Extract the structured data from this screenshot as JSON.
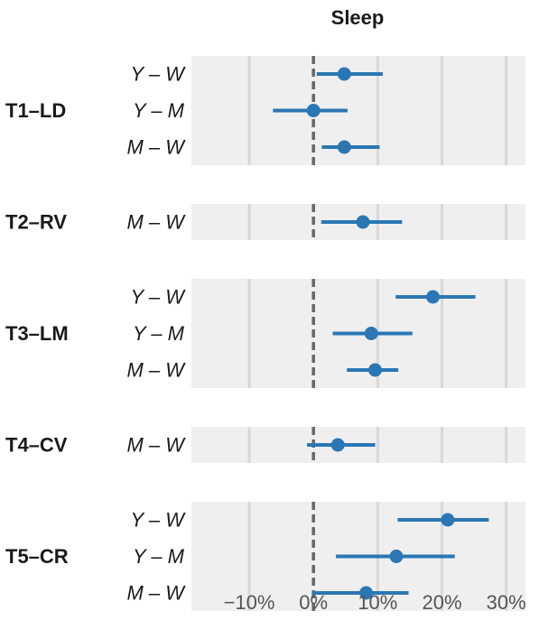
{
  "chart_data": {
    "type": "forest",
    "title": "Sleep",
    "xlabel": "",
    "ylabel": "",
    "xlim": [
      -19,
      33
    ],
    "x_ticks": [
      -10,
      0,
      10,
      20,
      30
    ],
    "x_tick_labels": [
      "−10%",
      "0%",
      "10%",
      "20%",
      "30%"
    ],
    "reference_line": 0,
    "grid": true,
    "point_color": "#2a77b4",
    "panel_background": "#efefef",
    "grid_color": "#d8d8d8",
    "reference_line_color": "#666666",
    "groups": [
      {
        "label": "T1–LD",
        "rows": [
          {
            "label": "Y – W",
            "estimate": 4.8,
            "lower": 0.5,
            "upper": 10.8
          },
          {
            "label": "Y – M",
            "estimate": 0.0,
            "lower": -6.3,
            "upper": 5.3
          },
          {
            "label": "M – W",
            "estimate": 4.8,
            "lower": 1.3,
            "upper": 10.3
          }
        ]
      },
      {
        "label": "T2–RV",
        "rows": [
          {
            "label": "M – W",
            "estimate": 7.7,
            "lower": 1.2,
            "upper": 13.8
          }
        ]
      },
      {
        "label": "T3–LM",
        "rows": [
          {
            "label": "Y – W",
            "estimate": 18.6,
            "lower": 12.8,
            "upper": 25.2
          },
          {
            "label": "Y – M",
            "estimate": 9.0,
            "lower": 3.0,
            "upper": 15.4
          },
          {
            "label": "M – W",
            "estimate": 9.6,
            "lower": 5.2,
            "upper": 13.2
          }
        ]
      },
      {
        "label": "T4–CV",
        "rows": [
          {
            "label": "M – W",
            "estimate": 3.8,
            "lower": -1.0,
            "upper": 9.6
          }
        ]
      },
      {
        "label": "T5–CR",
        "rows": [
          {
            "label": "Y – W",
            "estimate": 20.9,
            "lower": 13.1,
            "upper": 27.3
          },
          {
            "label": "Y – M",
            "estimate": 12.9,
            "lower": 3.5,
            "upper": 22.0
          },
          {
            "label": "M – W",
            "estimate": 8.2,
            "lower": -0.2,
            "upper": 14.8
          }
        ]
      }
    ]
  }
}
